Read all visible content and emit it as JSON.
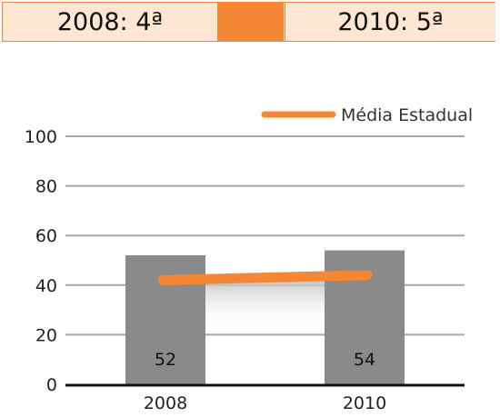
{
  "header": {
    "left_label": "2008: 4ª",
    "right_label": "2010: 5ª",
    "accent_color": "#f58634"
  },
  "chart_data": {
    "type": "bar",
    "categories": [
      "2008",
      "2010"
    ],
    "values": [
      52,
      54
    ],
    "data_labels": [
      "52",
      "54"
    ],
    "bar_color": "#8a8a8a",
    "line_series": {
      "name": "Média Estadual",
      "values": [
        42,
        44
      ],
      "color": "#f58634"
    },
    "yticks": [
      "0",
      "20",
      "40",
      "60",
      "80",
      "100"
    ],
    "ylim": [
      0,
      100
    ],
    "grid": true,
    "legend": "top-right",
    "title": "",
    "xlabel": "",
    "ylabel": ""
  }
}
